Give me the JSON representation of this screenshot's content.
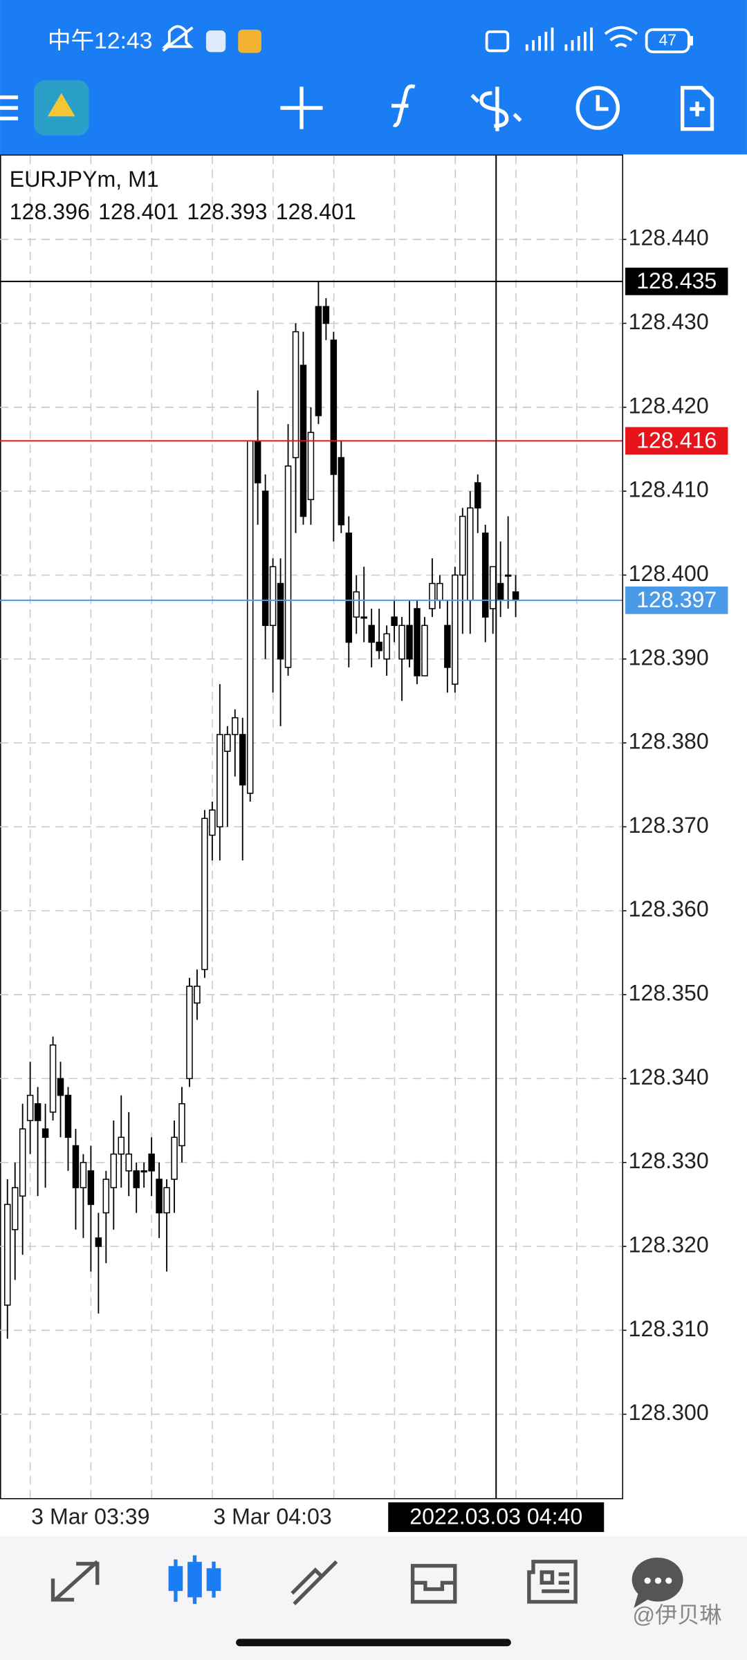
{
  "status_bar": {
    "time": "中午12:43",
    "battery": 47
  },
  "watermark": "@伊贝琳",
  "chart_data": {
    "type": "candlestick",
    "title": "EURJPYm, M1",
    "header_ohlc": [
      128.396,
      128.401,
      128.393,
      128.401
    ],
    "categories": [
      null,
      null,
      null,
      "3 Mar 03:39",
      null,
      null,
      null,
      null,
      null,
      null,
      null,
      null,
      null,
      null,
      null,
      null,
      null,
      null,
      null,
      null,
      null,
      null,
      null,
      null,
      null,
      null,
      null,
      "3 Mar 04:03",
      null,
      null,
      null,
      null,
      null,
      null,
      null,
      null,
      null,
      null,
      null,
      null,
      null,
      null,
      null,
      null,
      null,
      null,
      null,
      null,
      null,
      null,
      null,
      null,
      null,
      null,
      null,
      null,
      null,
      null,
      null,
      null,
      null,
      null,
      null,
      null,
      null,
      null,
      null,
      null
    ],
    "cursor_time": "2022.03.03 04:40",
    "open": [
      128.313,
      128.322,
      128.326,
      128.335,
      128.337,
      128.334,
      128.336,
      128.34,
      128.338,
      128.332,
      128.327,
      128.329,
      128.321,
      128.324,
      128.327,
      128.331,
      128.329,
      128.329,
      128.329,
      128.331,
      128.328,
      128.324,
      128.328,
      128.332,
      128.34,
      128.349,
      128.353,
      128.369,
      128.37,
      128.379,
      128.381,
      128.381,
      128.374,
      128.416,
      128.41,
      128.394,
      128.399,
      128.389,
      128.414,
      128.425,
      128.409,
      128.432,
      128.432,
      128.428,
      128.414,
      128.405,
      128.395,
      128.395,
      128.394,
      128.392,
      128.39,
      128.395,
      128.39,
      128.394,
      128.396,
      128.388,
      128.396,
      128.397,
      128.394,
      128.387,
      128.4,
      128.397,
      128.411,
      128.405,
      128.396,
      128.399,
      128.4,
      128.398
    ],
    "high": [
      128.328,
      128.33,
      128.337,
      128.342,
      128.339,
      128.337,
      128.345,
      128.342,
      128.339,
      128.334,
      128.331,
      128.332,
      128.324,
      128.329,
      128.335,
      128.338,
      128.336,
      128.33,
      128.33,
      128.333,
      128.33,
      128.328,
      128.335,
      128.339,
      128.352,
      128.353,
      128.372,
      128.373,
      128.387,
      128.382,
      128.384,
      128.383,
      128.416,
      128.422,
      128.412,
      128.402,
      128.402,
      128.418,
      128.43,
      128.429,
      128.42,
      128.435,
      128.433,
      128.429,
      128.416,
      128.407,
      128.4,
      128.401,
      128.396,
      128.396,
      128.394,
      128.397,
      128.395,
      128.397,
      128.397,
      128.395,
      128.402,
      128.4,
      128.397,
      128.401,
      128.408,
      128.41,
      128.412,
      128.406,
      128.401,
      128.404,
      128.407,
      128.4
    ],
    "low": [
      128.309,
      128.316,
      128.319,
      128.331,
      128.326,
      128.327,
      128.335,
      128.333,
      128.329,
      128.322,
      128.321,
      128.317,
      128.312,
      128.318,
      128.322,
      128.327,
      128.326,
      128.324,
      128.327,
      128.326,
      128.321,
      128.317,
      128.324,
      128.33,
      128.339,
      128.347,
      128.352,
      128.366,
      128.366,
      128.37,
      128.376,
      128.366,
      128.373,
      128.406,
      128.39,
      128.386,
      128.382,
      128.388,
      128.405,
      128.406,
      128.406,
      128.418,
      128.428,
      128.404,
      128.405,
      128.389,
      128.393,
      128.392,
      128.389,
      128.39,
      128.388,
      128.392,
      128.385,
      128.389,
      128.387,
      128.388,
      128.395,
      128.396,
      128.386,
      128.386,
      128.393,
      128.393,
      128.405,
      128.392,
      128.393,
      128.395,
      128.396,
      128.395
    ],
    "close": [
      128.325,
      128.327,
      128.334,
      128.338,
      128.335,
      128.333,
      128.344,
      128.338,
      128.333,
      128.327,
      128.33,
      128.325,
      128.32,
      128.328,
      128.331,
      128.333,
      128.331,
      128.327,
      128.329,
      128.329,
      128.324,
      128.327,
      128.333,
      128.337,
      128.351,
      128.351,
      128.371,
      128.372,
      128.381,
      128.381,
      128.383,
      128.375,
      128.416,
      128.411,
      128.394,
      128.401,
      128.39,
      128.413,
      128.429,
      128.407,
      128.417,
      128.419,
      128.43,
      128.412,
      128.406,
      128.392,
      128.398,
      128.395,
      128.392,
      128.391,
      128.393,
      128.394,
      128.394,
      128.39,
      128.388,
      128.394,
      128.399,
      128.399,
      128.389,
      128.4,
      128.407,
      128.408,
      128.408,
      128.395,
      128.401,
      128.397,
      128.4,
      128.397
    ],
    "up_color": "#ffffff",
    "down_color": "#000000",
    "ylim": [
      128.29,
      128.45
    ],
    "yticks": [
      {
        "value": 128.3,
        "label": "128.300"
      },
      {
        "value": 128.31,
        "label": "128.310"
      },
      {
        "value": 128.32,
        "label": "128.320"
      },
      {
        "value": 128.33,
        "label": "128.330"
      },
      {
        "value": 128.34,
        "label": "128.340"
      },
      {
        "value": 128.35,
        "label": "128.350"
      },
      {
        "value": 128.36,
        "label": "128.360"
      },
      {
        "value": 128.37,
        "label": "128.370"
      },
      {
        "value": 128.38,
        "label": "128.380"
      },
      {
        "value": 128.39,
        "label": "128.390"
      },
      {
        "value": 128.4,
        "label": "128.400"
      },
      {
        "value": 128.41,
        "label": "128.410"
      },
      {
        "value": 128.42,
        "label": "128.420"
      },
      {
        "value": 128.43,
        "label": "128.430"
      },
      {
        "value": 128.44,
        "label": "128.440"
      }
    ],
    "grid": true,
    "hlines": [
      {
        "value": 128.435,
        "color": "#000000"
      },
      {
        "value": 128.416,
        "color": "#e8141c"
      },
      {
        "value": 128.397,
        "color": "#4a9ae8"
      }
    ]
  }
}
